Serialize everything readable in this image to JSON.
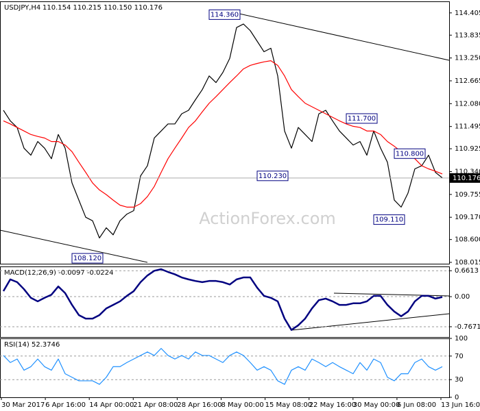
{
  "chart_data": [
    {
      "type": "line",
      "title": "USDJPY,H4",
      "subtitle": "110.154 110.215 110.150 110.176",
      "series": [
        {
          "color": "#000000",
          "values": [
            111.91,
            111.64,
            111.47,
            110.94,
            110.76,
            111.11,
            110.94,
            110.67,
            111.29,
            110.94,
            110.05,
            109.61,
            109.17,
            109.08,
            108.64,
            108.9,
            108.72,
            109.08,
            109.25,
            109.34,
            110.23,
            110.49,
            111.2,
            111.38,
            111.56,
            111.56,
            111.82,
            111.91,
            112.18,
            112.44,
            112.79,
            112.62,
            112.88,
            113.24,
            114.03,
            114.12,
            113.95,
            113.68,
            113.41,
            113.5,
            112.79,
            111.38,
            110.94,
            111.47,
            111.29,
            111.11,
            111.82,
            111.91,
            111.64,
            111.38,
            111.2,
            111.02,
            111.11,
            110.76,
            111.38,
            110.94,
            110.58,
            109.61,
            109.43,
            109.79,
            110.41,
            110.49,
            110.76,
            110.32,
            110.18
          ]
        },
        {
          "color": "#ff0000",
          "values": [
            111.64,
            111.56,
            111.47,
            111.38,
            111.29,
            111.24,
            111.2,
            111.11,
            111.11,
            111.02,
            110.85,
            110.58,
            110.32,
            110.05,
            109.87,
            109.75,
            109.61,
            109.48,
            109.43,
            109.43,
            109.52,
            109.7,
            109.96,
            110.32,
            110.67,
            110.94,
            111.2,
            111.47,
            111.64,
            111.87,
            112.09,
            112.26,
            112.44,
            112.62,
            112.79,
            112.97,
            113.06,
            113.11,
            113.15,
            113.18,
            113.06,
            112.79,
            112.44,
            112.26,
            112.09,
            112.0,
            111.91,
            111.82,
            111.73,
            111.64,
            111.56,
            111.5,
            111.47,
            111.38,
            111.38,
            111.29,
            111.11,
            110.99,
            110.85,
            110.76,
            110.67,
            110.49,
            110.41,
            110.35,
            110.28
          ]
        }
      ],
      "ylim": [
        107.98,
        114.7
      ],
      "yticks": [
        {
          "value": 114.405,
          "label": "114.405"
        },
        {
          "value": 113.835,
          "label": "113.835"
        },
        {
          "value": 113.25,
          "label": "113.250"
        },
        {
          "value": 112.665,
          "label": "112.665"
        },
        {
          "value": 112.08,
          "label": "112.080"
        },
        {
          "value": 111.495,
          "label": "111.495"
        },
        {
          "value": 110.925,
          "label": "110.925"
        },
        {
          "value": 110.34,
          "label": "110.340"
        },
        {
          "value": 109.755,
          "label": "109.755"
        },
        {
          "value": 109.17,
          "label": "109.170"
        },
        {
          "value": 108.6,
          "label": "108.600"
        },
        {
          "value": 108.015,
          "label": "108.015"
        }
      ],
      "last_price": 110.176,
      "annotations": [
        {
          "at": 34,
          "value": 114.36,
          "label": "114.360"
        },
        {
          "at": 14,
          "value": 108.12,
          "label": "108.120"
        },
        {
          "at": 41,
          "value": 110.23,
          "label": "110.230"
        },
        {
          "at": 54,
          "value": 111.7,
          "label": "111.700"
        },
        {
          "at": 61,
          "value": 110.8,
          "label": "110.800"
        },
        {
          "at": 58,
          "value": 109.11,
          "label": "109.110"
        }
      ],
      "watermark": "ActionForex.com",
      "grid": false
    },
    {
      "type": "line",
      "title": "MACD(12,26,9) -0.0097 -0.0224",
      "series": [
        {
          "color": "#000080",
          "values": [
            0.14,
            0.44,
            0.37,
            0.19,
            -0.03,
            -0.12,
            -0.03,
            0.05,
            0.26,
            0.09,
            -0.21,
            -0.47,
            -0.56,
            -0.56,
            -0.47,
            -0.3,
            -0.21,
            -0.12,
            0.02,
            0.14,
            0.37,
            0.54,
            0.66,
            0.7,
            0.63,
            0.57,
            0.49,
            0.44,
            0.4,
            0.37,
            0.4,
            0.4,
            0.37,
            0.31,
            0.44,
            0.49,
            0.49,
            0.23,
            0.02,
            -0.03,
            -0.12,
            -0.56,
            -0.85,
            -0.73,
            -0.56,
            -0.3,
            -0.09,
            -0.05,
            -0.12,
            -0.21,
            -0.21,
            -0.17,
            -0.17,
            -0.12,
            0.02,
            0.02,
            -0.21,
            -0.38,
            -0.5,
            -0.38,
            -0.12,
            0.02,
            0.02,
            -0.05,
            -0.01
          ]
        }
      ],
      "ylim": [
        -1.03,
        0.77
      ],
      "yticks": [
        0.6613,
        {
          "value": 0,
          "label": "0.00"
        },
        -0.7671
      ],
      "grid": true
    },
    {
      "type": "line",
      "title": "RSI(14) 52.3746",
      "series": [
        {
          "color": "#1e90ff",
          "values": [
            71,
            59,
            65,
            46,
            52,
            65,
            52,
            46,
            65,
            40,
            34,
            28,
            28,
            28,
            22,
            34,
            52,
            52,
            59,
            65,
            71,
            77,
            71,
            83,
            71,
            65,
            71,
            65,
            77,
            71,
            71,
            65,
            59,
            71,
            77,
            71,
            59,
            46,
            52,
            46,
            28,
            22,
            46,
            52,
            46,
            65,
            59,
            52,
            59,
            52,
            46,
            40,
            59,
            46,
            65,
            59,
            34,
            28,
            40,
            40,
            59,
            65,
            52,
            46,
            52
          ]
        }
      ],
      "ylim": [
        0,
        100
      ],
      "yticks": [
        100,
        70,
        30,
        0
      ],
      "grid": true,
      "xtick_labels": [
        "30 Mar 2017",
        "6 Apr 16:00",
        "14 Apr 00:00",
        "21 Apr 08:00",
        "28 Apr 16:00",
        "8 May 00:00",
        "15 May 08:00",
        "22 May 16:00",
        "30 May 00:00",
        "6 Jun 08:00",
        "13 Jun 16:00"
      ]
    }
  ]
}
